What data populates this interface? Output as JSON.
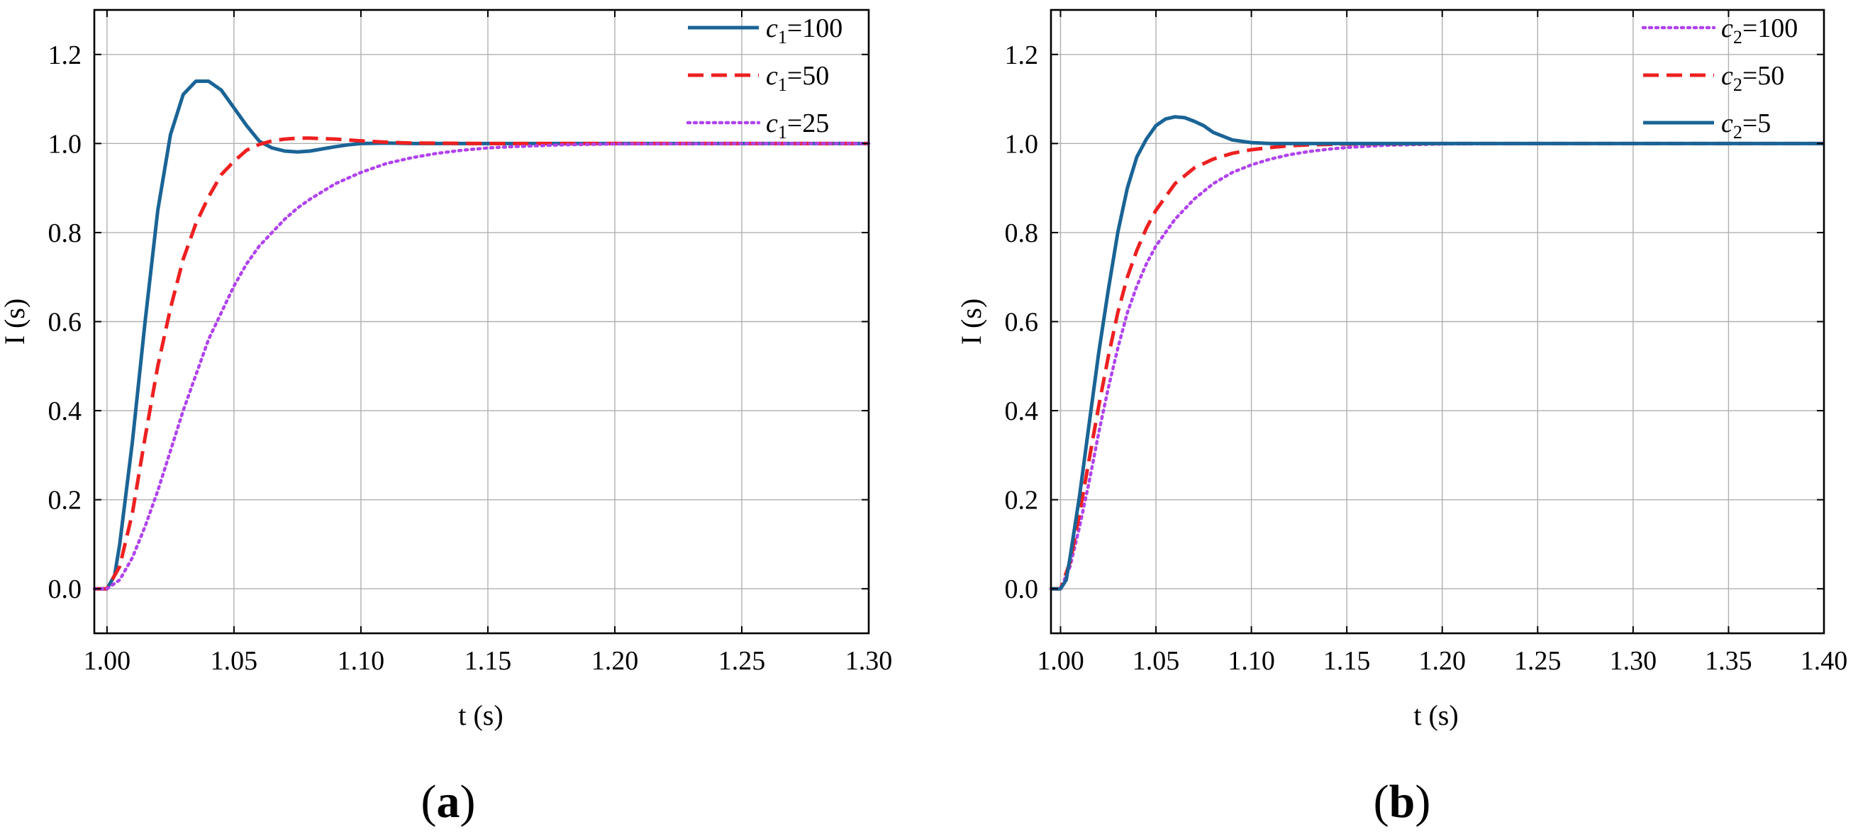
{
  "chart_data": [
    {
      "type": "line",
      "panel_label": "a",
      "xlabel": "t (s)",
      "ylabel": "I (s)",
      "xlim": [
        0.995,
        1.3
      ],
      "ylim": [
        -0.1,
        1.3
      ],
      "xticks": [
        1.0,
        1.05,
        1.1,
        1.15,
        1.2,
        1.25,
        1.3
      ],
      "xtick_labels": [
        "1.00",
        "1.05",
        "1.10",
        "1.15",
        "1.20",
        "1.25",
        "1.30"
      ],
      "yticks": [
        0.0,
        0.2,
        0.4,
        0.6,
        0.8,
        1.0,
        1.2
      ],
      "ytick_labels": [
        "0.0",
        "0.2",
        "0.4",
        "0.6",
        "0.8",
        "1.0",
        "1.2"
      ],
      "grid": true,
      "legend_position": "top-right",
      "series": [
        {
          "name_var": "c",
          "name_sub": "1",
          "name_rest": "=100",
          "color": "#1a6496",
          "style": "solid",
          "x": [
            0.995,
            1.0,
            1.003,
            1.005,
            1.01,
            1.015,
            1.02,
            1.025,
            1.03,
            1.035,
            1.04,
            1.045,
            1.05,
            1.055,
            1.06,
            1.065,
            1.07,
            1.075,
            1.08,
            1.085,
            1.09,
            1.095,
            1.1,
            1.11,
            1.12,
            1.15,
            1.2,
            1.3
          ],
          "y": [
            0.0,
            0.0,
            0.03,
            0.1,
            0.33,
            0.6,
            0.85,
            1.02,
            1.11,
            1.14,
            1.14,
            1.12,
            1.08,
            1.04,
            1.005,
            0.99,
            0.983,
            0.981,
            0.983,
            0.988,
            0.993,
            0.997,
            1.0,
            1.001,
            1.0,
            1.0,
            1.0,
            1.0
          ]
        },
        {
          "name_var": "c",
          "name_sub": "1",
          "name_rest": "=50",
          "color": "#ee2020",
          "style": "dashed",
          "x": [
            0.995,
            1.0,
            1.005,
            1.01,
            1.015,
            1.02,
            1.025,
            1.03,
            1.035,
            1.04,
            1.045,
            1.05,
            1.055,
            1.06,
            1.065,
            1.07,
            1.075,
            1.08,
            1.09,
            1.1,
            1.11,
            1.12,
            1.15,
            1.2,
            1.3
          ],
          "y": [
            0.0,
            0.0,
            0.05,
            0.17,
            0.34,
            0.5,
            0.63,
            0.74,
            0.82,
            0.88,
            0.93,
            0.96,
            0.985,
            0.998,
            1.006,
            1.01,
            1.012,
            1.012,
            1.01,
            1.006,
            1.003,
            1.001,
            1.0,
            1.0,
            1.0
          ]
        },
        {
          "name_var": "c",
          "name_sub": "1",
          "name_rest": "=25",
          "color": "#b043ee",
          "style": "dotted",
          "x": [
            0.995,
            1.0,
            1.005,
            1.01,
            1.015,
            1.02,
            1.025,
            1.03,
            1.035,
            1.04,
            1.045,
            1.05,
            1.055,
            1.06,
            1.065,
            1.07,
            1.075,
            1.08,
            1.09,
            1.1,
            1.11,
            1.12,
            1.13,
            1.14,
            1.15,
            1.16,
            1.18,
            1.2,
            1.25,
            1.3
          ],
          "y": [
            0.0,
            0.0,
            0.02,
            0.07,
            0.14,
            0.22,
            0.31,
            0.4,
            0.48,
            0.56,
            0.62,
            0.68,
            0.73,
            0.77,
            0.8,
            0.83,
            0.855,
            0.875,
            0.91,
            0.935,
            0.955,
            0.968,
            0.978,
            0.985,
            0.99,
            0.993,
            0.997,
            0.999,
            1.0,
            1.0
          ]
        }
      ]
    },
    {
      "type": "line",
      "panel_label": "b",
      "xlabel": "t (s)",
      "ylabel": "I (s)",
      "xlim": [
        0.995,
        1.4
      ],
      "ylim": [
        -0.1,
        1.3
      ],
      "xticks": [
        1.0,
        1.05,
        1.1,
        1.15,
        1.2,
        1.25,
        1.3,
        1.35,
        1.4
      ],
      "xtick_labels": [
        "1.00",
        "1.05",
        "1.10",
        "1.15",
        "1.20",
        "1.25",
        "1.30",
        "1.35",
        "1.40"
      ],
      "yticks": [
        0.0,
        0.2,
        0.4,
        0.6,
        0.8,
        1.0,
        1.2
      ],
      "ytick_labels": [
        "0.0",
        "0.2",
        "0.4",
        "0.6",
        "0.8",
        "1.0",
        "1.2"
      ],
      "grid": true,
      "legend_position": "top-right",
      "series": [
        {
          "name_var": "c",
          "name_sub": "2",
          "name_rest": "=100",
          "color": "#b043ee",
          "style": "dotted",
          "x": [
            0.995,
            1.0,
            1.005,
            1.01,
            1.015,
            1.02,
            1.025,
            1.03,
            1.035,
            1.04,
            1.045,
            1.05,
            1.06,
            1.07,
            1.08,
            1.09,
            1.1,
            1.11,
            1.12,
            1.13,
            1.14,
            1.15,
            1.17,
            1.2,
            1.25,
            1.3,
            1.4
          ],
          "y": [
            0.0,
            0.0,
            0.05,
            0.14,
            0.24,
            0.35,
            0.45,
            0.54,
            0.62,
            0.68,
            0.73,
            0.77,
            0.83,
            0.875,
            0.91,
            0.935,
            0.952,
            0.965,
            0.975,
            0.982,
            0.987,
            0.991,
            0.996,
            0.999,
            1.0,
            1.0,
            1.0
          ]
        },
        {
          "name_var": "c",
          "name_sub": "2",
          "name_rest": "=50",
          "color": "#ee2020",
          "style": "dashed",
          "x": [
            0.995,
            1.0,
            1.005,
            1.01,
            1.015,
            1.02,
            1.025,
            1.03,
            1.035,
            1.04,
            1.045,
            1.05,
            1.06,
            1.07,
            1.08,
            1.09,
            1.1,
            1.11,
            1.12,
            1.13,
            1.15,
            1.2,
            1.3,
            1.4
          ],
          "y": [
            0.0,
            0.0,
            0.06,
            0.17,
            0.29,
            0.41,
            0.52,
            0.62,
            0.7,
            0.76,
            0.81,
            0.85,
            0.91,
            0.945,
            0.965,
            0.978,
            0.986,
            0.991,
            0.995,
            0.997,
            0.999,
            1.0,
            1.0,
            1.0
          ]
        },
        {
          "name_var": "c",
          "name_sub": "2",
          "name_rest": "=5",
          "color": "#1a6496",
          "style": "solid",
          "x": [
            0.995,
            1.0,
            1.003,
            1.005,
            1.01,
            1.015,
            1.02,
            1.025,
            1.03,
            1.035,
            1.04,
            1.045,
            1.05,
            1.055,
            1.06,
            1.065,
            1.07,
            1.075,
            1.08,
            1.09,
            1.1,
            1.11,
            1.12,
            1.15,
            1.2,
            1.3,
            1.4
          ],
          "y": [
            0.0,
            0.0,
            0.02,
            0.07,
            0.21,
            0.37,
            0.53,
            0.67,
            0.8,
            0.9,
            0.97,
            1.01,
            1.04,
            1.055,
            1.06,
            1.058,
            1.05,
            1.04,
            1.025,
            1.008,
            1.002,
            1.0,
            1.0,
            1.0,
            1.0,
            1.0,
            1.0
          ]
        }
      ]
    }
  ]
}
